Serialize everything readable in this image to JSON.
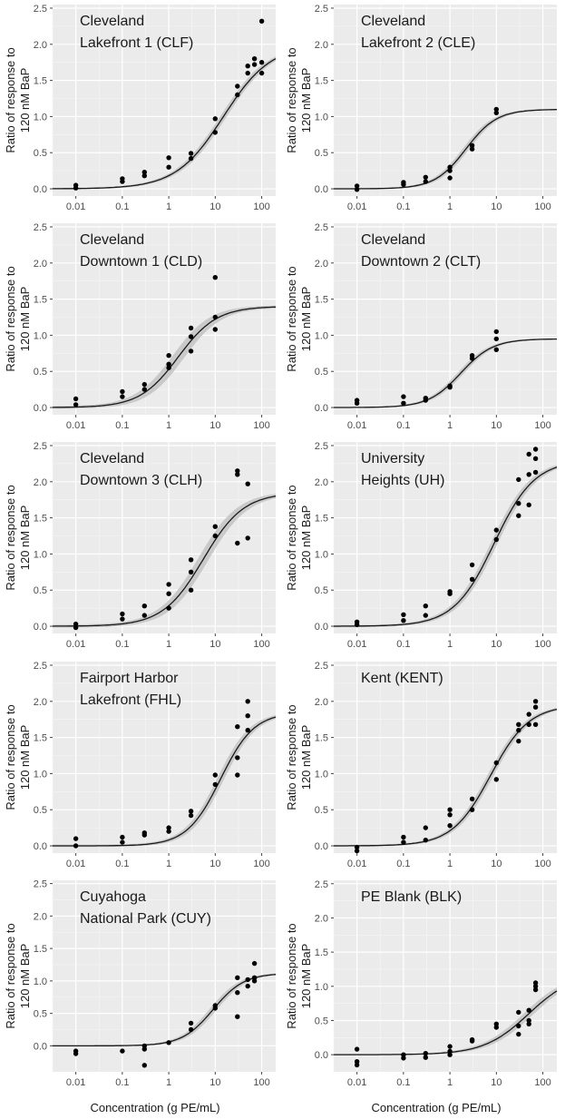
{
  "figure": {
    "xlabel": "Concentration (g PE/mL)",
    "ylabel_line1": "Ratio of response to",
    "ylabel_line2": "120 nM BaP"
  },
  "chart_data": [
    {
      "type": "scatter",
      "title_lines": [
        "Cleveland",
        "Lakefront 1 (CLF)"
      ],
      "x_scale": "log",
      "xlim": [
        0.00316,
        200
      ],
      "ylim": [
        -0.1,
        2.55
      ],
      "grid": true,
      "x_ticks": [
        "0.01",
        "0.1",
        "1",
        "10",
        "100"
      ],
      "y_ticks": [
        "0.0",
        "0.5",
        "1.0",
        "1.5",
        "2.0",
        "2.5"
      ],
      "points": [
        [
          0.01,
          0.01
        ],
        [
          0.01,
          0.05
        ],
        [
          0.1,
          0.1
        ],
        [
          0.1,
          0.14
        ],
        [
          0.3,
          0.18
        ],
        [
          0.3,
          0.23
        ],
        [
          1,
          0.3
        ],
        [
          1,
          0.43
        ],
        [
          3,
          0.42
        ],
        [
          3,
          0.49
        ],
        [
          10,
          0.78
        ],
        [
          10,
          0.97
        ],
        [
          30,
          1.3
        ],
        [
          30,
          1.42
        ],
        [
          50,
          1.6
        ],
        [
          50,
          1.7
        ],
        [
          70,
          1.72
        ],
        [
          70,
          1.8
        ],
        [
          100,
          1.6
        ],
        [
          100,
          1.75
        ],
        [
          100,
          2.32
        ]
      ],
      "fit": {
        "bottom": 0.0,
        "top": 2.0,
        "ec50": 15,
        "hill": 0.85
      },
      "band": 0.07
    },
    {
      "type": "scatter",
      "title_lines": [
        "Cleveland",
        "Lakefront 2 (CLE)"
      ],
      "x_scale": "log",
      "xlim": [
        0.00316,
        200
      ],
      "ylim": [
        -0.1,
        2.55
      ],
      "grid": true,
      "x_ticks": [
        "0.01",
        "0.1",
        "1",
        "10",
        "100"
      ],
      "y_ticks": [
        "0.0",
        "0.5",
        "1.0",
        "1.5",
        "2.0",
        "2.5"
      ],
      "points": [
        [
          0.01,
          -0.01
        ],
        [
          0.01,
          0.04
        ],
        [
          0.1,
          0.06
        ],
        [
          0.1,
          0.09
        ],
        [
          0.3,
          0.1
        ],
        [
          0.3,
          0.16
        ],
        [
          1,
          0.15
        ],
        [
          1,
          0.25
        ],
        [
          1,
          0.3
        ],
        [
          3,
          0.55
        ],
        [
          3,
          0.6
        ],
        [
          10,
          1.05
        ],
        [
          10,
          1.1
        ]
      ],
      "fit": {
        "bottom": 0.0,
        "top": 1.1,
        "ec50": 2.2,
        "hill": 1.3
      },
      "band": 0.06
    },
    {
      "type": "scatter",
      "title_lines": [
        "Cleveland",
        "Downtown 1 (CLD)"
      ],
      "x_scale": "log",
      "xlim": [
        0.00316,
        200
      ],
      "ylim": [
        -0.1,
        2.55
      ],
      "grid": true,
      "x_ticks": [
        "0.01",
        "0.1",
        "1",
        "10",
        "100"
      ],
      "y_ticks": [
        "0.0",
        "0.5",
        "1.0",
        "1.5",
        "2.0",
        "2.5"
      ],
      "points": [
        [
          0.01,
          0.04
        ],
        [
          0.01,
          0.12
        ],
        [
          0.1,
          0.15
        ],
        [
          0.1,
          0.22
        ],
        [
          0.3,
          0.25
        ],
        [
          0.3,
          0.32
        ],
        [
          1,
          0.55
        ],
        [
          1,
          0.6
        ],
        [
          1,
          0.72
        ],
        [
          3,
          0.78
        ],
        [
          3,
          0.98
        ],
        [
          3,
          1.1
        ],
        [
          10,
          1.08
        ],
        [
          10,
          1.25
        ],
        [
          10,
          1.8
        ]
      ],
      "fit": {
        "bottom": 0.0,
        "top": 1.4,
        "ec50": 1.6,
        "hill": 1.05
      },
      "band": 0.12
    },
    {
      "type": "scatter",
      "title_lines": [
        "Cleveland",
        "Downtown 2 (CLT)"
      ],
      "x_scale": "log",
      "xlim": [
        0.00316,
        200
      ],
      "ylim": [
        -0.1,
        2.55
      ],
      "grid": true,
      "x_ticks": [
        "0.01",
        "0.1",
        "1",
        "10",
        "100"
      ],
      "y_ticks": [
        "0.0",
        "0.5",
        "1.0",
        "1.5",
        "2.0",
        "2.5"
      ],
      "points": [
        [
          0.01,
          0.06
        ],
        [
          0.01,
          0.1
        ],
        [
          0.1,
          0.06
        ],
        [
          0.1,
          0.15
        ],
        [
          0.3,
          0.1
        ],
        [
          0.3,
          0.13
        ],
        [
          1,
          0.28
        ],
        [
          1,
          0.3
        ],
        [
          3,
          0.68
        ],
        [
          3,
          0.72
        ],
        [
          10,
          0.8
        ],
        [
          10,
          0.95
        ],
        [
          10,
          1.05
        ]
      ],
      "fit": {
        "bottom": 0.0,
        "top": 0.95,
        "ec50": 1.7,
        "hill": 1.25
      },
      "band": 0.05
    },
    {
      "type": "scatter",
      "title_lines": [
        "Cleveland",
        "Downtown 3 (CLH)"
      ],
      "x_scale": "log",
      "xlim": [
        0.00316,
        200
      ],
      "ylim": [
        -0.1,
        2.55
      ],
      "grid": true,
      "x_ticks": [
        "0.01",
        "0.1",
        "1",
        "10",
        "100"
      ],
      "y_ticks": [
        "0.0",
        "0.5",
        "1.0",
        "1.5",
        "2.0",
        "2.5"
      ],
      "points": [
        [
          0.01,
          -0.02
        ],
        [
          0.01,
          0.03
        ],
        [
          0.1,
          0.1
        ],
        [
          0.1,
          0.17
        ],
        [
          0.3,
          0.15
        ],
        [
          0.3,
          0.28
        ],
        [
          1,
          0.25
        ],
        [
          1,
          0.45
        ],
        [
          1,
          0.58
        ],
        [
          3,
          0.5
        ],
        [
          3,
          0.75
        ],
        [
          3,
          0.92
        ],
        [
          10,
          1.25
        ],
        [
          10,
          1.38
        ],
        [
          30,
          1.15
        ],
        [
          30,
          2.1
        ],
        [
          30,
          2.15
        ],
        [
          50,
          1.22
        ],
        [
          50,
          1.97
        ]
      ],
      "fit": {
        "bottom": 0.0,
        "top": 1.85,
        "ec50": 5.5,
        "hill": 1.0
      },
      "band": 0.13
    },
    {
      "type": "scatter",
      "title_lines": [
        "University",
        "Heights (UH)"
      ],
      "x_scale": "log",
      "xlim": [
        0.00316,
        200
      ],
      "ylim": [
        -0.1,
        2.55
      ],
      "grid": true,
      "x_ticks": [
        "0.01",
        "0.1",
        "1",
        "10",
        "100"
      ],
      "y_ticks": [
        "0.0",
        "0.5",
        "1.0",
        "1.5",
        "2.0",
        "2.5"
      ],
      "points": [
        [
          0.01,
          0.02
        ],
        [
          0.01,
          0.06
        ],
        [
          0.1,
          0.08
        ],
        [
          0.1,
          0.16
        ],
        [
          0.3,
          0.15
        ],
        [
          0.3,
          0.28
        ],
        [
          1,
          0.45
        ],
        [
          1,
          0.48
        ],
        [
          3,
          0.65
        ],
        [
          3,
          0.85
        ],
        [
          10,
          1.2
        ],
        [
          10,
          1.33
        ],
        [
          30,
          1.53
        ],
        [
          30,
          1.7
        ],
        [
          30,
          2.03
        ],
        [
          50,
          1.68
        ],
        [
          50,
          2.1
        ],
        [
          50,
          2.38
        ],
        [
          70,
          2.13
        ],
        [
          70,
          2.32
        ],
        [
          70,
          2.45
        ]
      ],
      "fit": {
        "bottom": 0.0,
        "top": 2.3,
        "ec50": 9.0,
        "hill": 1.0
      },
      "band": 0.1
    },
    {
      "type": "scatter",
      "title_lines": [
        "Fairport Harbor",
        "Lakefront (FHL)"
      ],
      "x_scale": "log",
      "xlim": [
        0.00316,
        200
      ],
      "ylim": [
        -0.1,
        2.55
      ],
      "grid": true,
      "x_ticks": [
        "0.01",
        "0.1",
        "1",
        "10",
        "100"
      ],
      "y_ticks": [
        "0.0",
        "0.5",
        "1.0",
        "1.5",
        "2.0",
        "2.5"
      ],
      "points": [
        [
          0.01,
          0.0
        ],
        [
          0.01,
          0.1
        ],
        [
          0.1,
          0.05
        ],
        [
          0.1,
          0.12
        ],
        [
          0.3,
          0.15
        ],
        [
          0.3,
          0.18
        ],
        [
          1,
          0.2
        ],
        [
          1,
          0.25
        ],
        [
          3,
          0.42
        ],
        [
          3,
          0.48
        ],
        [
          10,
          0.85
        ],
        [
          10,
          0.98
        ],
        [
          30,
          0.98
        ],
        [
          30,
          1.22
        ],
        [
          30,
          1.65
        ],
        [
          50,
          1.6
        ],
        [
          50,
          1.8
        ],
        [
          50,
          2.0
        ]
      ],
      "fit": {
        "bottom": 0.0,
        "top": 1.85,
        "ec50": 13,
        "hill": 1.2
      },
      "band": 0.1
    },
    {
      "type": "scatter",
      "title_lines": [
        "Kent (KENT)"
      ],
      "x_scale": "log",
      "xlim": [
        0.00316,
        200
      ],
      "ylim": [
        -0.1,
        2.55
      ],
      "grid": true,
      "x_ticks": [
        "0.01",
        "0.1",
        "1",
        "10",
        "100"
      ],
      "y_ticks": [
        "0.0",
        "0.5",
        "1.0",
        "1.5",
        "2.0",
        "2.5"
      ],
      "points": [
        [
          0.01,
          -0.07
        ],
        [
          0.01,
          -0.02
        ],
        [
          0.1,
          0.05
        ],
        [
          0.1,
          0.12
        ],
        [
          0.3,
          0.08
        ],
        [
          0.3,
          0.25
        ],
        [
          1,
          0.28
        ],
        [
          1,
          0.43
        ],
        [
          1,
          0.5
        ],
        [
          3,
          0.5
        ],
        [
          3,
          0.65
        ],
        [
          10,
          0.92
        ],
        [
          10,
          1.15
        ],
        [
          30,
          1.45
        ],
        [
          30,
          1.6
        ],
        [
          30,
          1.68
        ],
        [
          50,
          1.68
        ],
        [
          50,
          1.82
        ],
        [
          70,
          1.68
        ],
        [
          70,
          1.92
        ],
        [
          70,
          2.0
        ]
      ],
      "fit": {
        "bottom": 0.0,
        "top": 1.95,
        "ec50": 7.5,
        "hill": 1.05
      },
      "band": 0.08
    },
    {
      "type": "scatter",
      "title_lines": [
        "Cuyahoga",
        "National Park (CUY)"
      ],
      "x_scale": "log",
      "xlim": [
        0.00316,
        200
      ],
      "ylim": [
        -0.4,
        2.55
      ],
      "grid": true,
      "x_ticks": [
        "0.01",
        "0.1",
        "1",
        "10",
        "100"
      ],
      "y_ticks": [
        "0.0",
        "0.5",
        "1.0",
        "1.5",
        "2.0",
        "2.5"
      ],
      "points": [
        [
          0.01,
          -0.12
        ],
        [
          0.01,
          -0.08
        ],
        [
          0.1,
          -0.08
        ],
        [
          0.3,
          -0.3
        ],
        [
          0.3,
          -0.05
        ],
        [
          0.3,
          0.0
        ],
        [
          1,
          0.05
        ],
        [
          3,
          0.25
        ],
        [
          3,
          0.35
        ],
        [
          10,
          0.58
        ],
        [
          10,
          0.62
        ],
        [
          30,
          0.45
        ],
        [
          30,
          0.82
        ],
        [
          30,
          1.05
        ],
        [
          50,
          0.92
        ],
        [
          50,
          1.02
        ],
        [
          70,
          1.0
        ],
        [
          70,
          1.05
        ],
        [
          70,
          1.27
        ]
      ],
      "fit": {
        "bottom": 0.0,
        "top": 1.12,
        "ec50": 9.0,
        "hill": 1.3
      },
      "band": 0.07
    },
    {
      "type": "scatter",
      "title_lines": [
        "PE Blank (BLK)"
      ],
      "x_scale": "log",
      "xlim": [
        0.00316,
        200
      ],
      "ylim": [
        -0.25,
        2.55
      ],
      "grid": true,
      "x_ticks": [
        "0.01",
        "0.1",
        "1",
        "10",
        "100"
      ],
      "y_ticks": [
        "0.0",
        "0.5",
        "1.0",
        "1.5",
        "2.0",
        "2.5"
      ],
      "points": [
        [
          0.01,
          -0.15
        ],
        [
          0.01,
          -0.1
        ],
        [
          0.01,
          0.08
        ],
        [
          0.1,
          -0.05
        ],
        [
          0.1,
          0.0
        ],
        [
          0.3,
          -0.04
        ],
        [
          0.3,
          0.02
        ],
        [
          1,
          0.0
        ],
        [
          1,
          0.05
        ],
        [
          1,
          0.12
        ],
        [
          3,
          0.2
        ],
        [
          3,
          0.22
        ],
        [
          10,
          0.4
        ],
        [
          10,
          0.45
        ],
        [
          30,
          0.3
        ],
        [
          30,
          0.42
        ],
        [
          30,
          0.62
        ],
        [
          50,
          0.45
        ],
        [
          50,
          0.5
        ],
        [
          50,
          0.65
        ],
        [
          70,
          0.95
        ],
        [
          70,
          1.0
        ],
        [
          70,
          1.05
        ]
      ],
      "fit": {
        "bottom": 0.0,
        "top": 1.2,
        "ec50": 50,
        "hill": 0.9
      },
      "band": 0.07
    }
  ]
}
